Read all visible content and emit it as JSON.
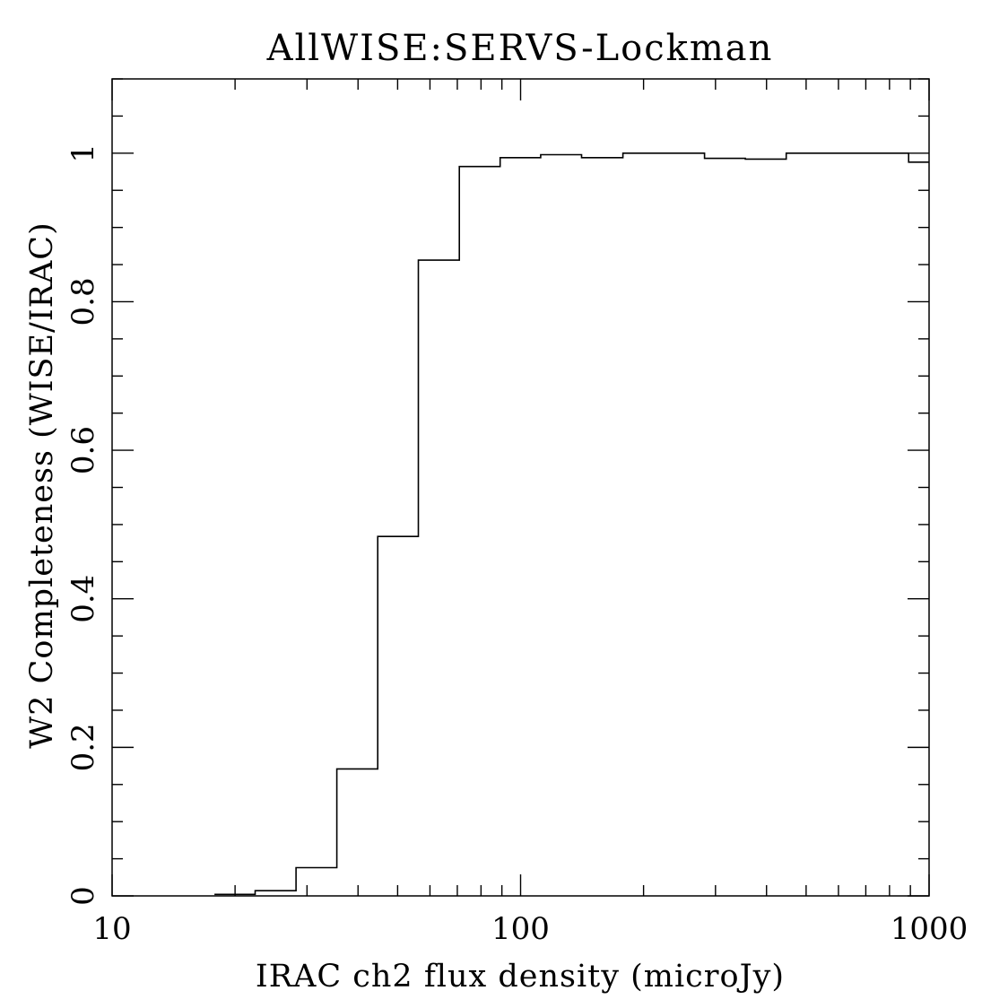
{
  "chart_data": {
    "type": "step",
    "title": "AllWISE:SERVS-Lockman",
    "xlabel": "IRAC ch2 flux density (microJy)",
    "ylabel": "W2 Completeness (WISE/IRAC)",
    "xscale": "log",
    "xlim": [
      10,
      1000
    ],
    "ylim": [
      0,
      1.1
    ],
    "x_ticks": [
      10,
      100,
      1000
    ],
    "x_tick_labels": [
      "10",
      "100",
      "1000"
    ],
    "y_ticks": [
      0,
      0.2,
      0.4,
      0.6,
      0.8,
      1
    ],
    "y_tick_labels": [
      "0",
      "0.2",
      "0.4",
      "0.6",
      "0.8",
      "1"
    ],
    "grid": false,
    "series": [
      {
        "bin_edges": [
          17.8,
          22.4,
          28.2,
          35.5,
          44.7,
          56.2,
          70.8,
          89.1,
          112,
          141,
          178,
          224,
          282,
          355,
          447,
          562,
          708,
          891,
          1000
        ],
        "values": [
          0.002,
          0.007,
          0.038,
          0.171,
          0.484,
          0.856,
          0.982,
          0.994,
          0.998,
          0.994,
          1.0,
          1.0,
          0.993,
          0.992,
          1.0,
          1.0,
          1.0,
          0.988
        ]
      }
    ]
  }
}
